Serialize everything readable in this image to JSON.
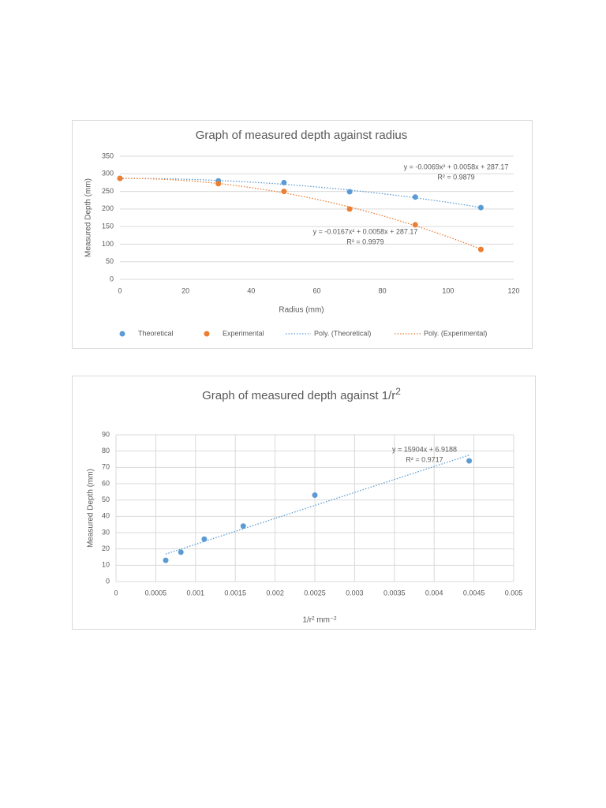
{
  "chart_data": [
    {
      "type": "scatter",
      "title": "Graph of measured depth against radius",
      "x_label": "Radius (mm)",
      "y_label": "Measured Depth (mm)",
      "x": [
        0,
        30,
        50,
        70,
        90,
        110
      ],
      "series": [
        {
          "name": "Theoretical",
          "color": "#5b9bd5",
          "values": [
            287,
            280,
            275,
            249,
            234,
            204
          ],
          "trendline": {
            "name": "Poly. (Theoretical)",
            "coefficients": [
              -0.0069,
              0.0058,
              287.17
            ],
            "equation": "y = -0.0069x² + 0.0058x + 287.17",
            "r_squared": "R² = 0.9879"
          }
        },
        {
          "name": "Experimental",
          "color": "#ed7d31",
          "values": [
            287,
            272,
            250,
            200,
            155,
            85
          ],
          "trendline": {
            "name": "Poly. (Experimental)",
            "coefficients": [
              -0.0167,
              0.0058,
              287.17
            ],
            "equation": "y = -0.0167x² + 0.0058x + 287.17",
            "r_squared": "R² = 0.9979"
          }
        }
      ],
      "xlim": [
        0,
        120
      ],
      "xticks": [
        0,
        20,
        40,
        60,
        80,
        100,
        120
      ],
      "ylim": [
        0,
        350
      ],
      "yticks": [
        0,
        50,
        100,
        150,
        200,
        250,
        300,
        350
      ],
      "grid": "y",
      "legend": "bottom"
    },
    {
      "type": "scatter",
      "title": "Graph of measured depth against 1/r",
      "title_superscript": "2",
      "x_label": "1/r² mm⁻²",
      "y_label": "Measured Depth (mm)",
      "x": [
        0.000625,
        0.000816,
        0.00111,
        0.0016,
        0.0025,
        0.00444
      ],
      "series": [
        {
          "color": "#5b9bd5",
          "values": [
            13,
            18,
            26,
            34,
            53,
            74
          ],
          "trendline": {
            "coefficients": [
              15904,
              6.9188
            ],
            "equation": "y = 15904x + 6.9188",
            "r_squared": "R² = 0.9717"
          }
        }
      ],
      "xlim": [
        0,
        0.005
      ],
      "xticks": [
        0,
        0.0005,
        0.001,
        0.0015,
        0.002,
        0.0025,
        0.003,
        0.0035,
        0.004,
        0.0045,
        0.005
      ],
      "ylim": [
        0,
        90
      ],
      "yticks": [
        0,
        10,
        20,
        30,
        40,
        50,
        60,
        70,
        80,
        90
      ],
      "grid": "both"
    }
  ]
}
